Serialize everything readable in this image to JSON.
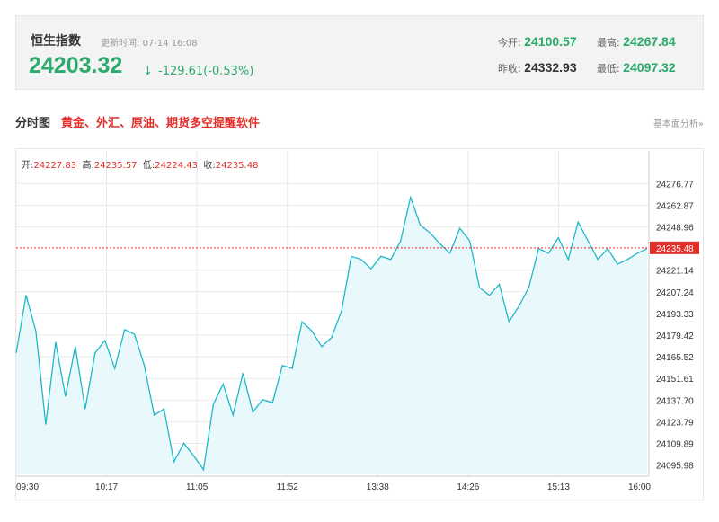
{
  "quote": {
    "name": "恒生指数",
    "update_label": "更新时间:",
    "update_time": "07-14 16:08",
    "price": "24203.32",
    "arrow": "↓",
    "change": "-129.61(-0.53%)",
    "open_label": "今开:",
    "open": "24100.57",
    "high_label": "最高:",
    "high": "24267.84",
    "prev_close_label": "昨收:",
    "prev_close": "24332.93",
    "low_label": "最低:",
    "low": "24097.32"
  },
  "section": {
    "title": "分时图",
    "ad": "黄金、外汇、原油、期货多空提醒软件",
    "fund_link": "基本面分析»"
  },
  "ohlc": {
    "open_label": "开:",
    "open": "24227.83",
    "high_label": "高:",
    "high": "24235.57",
    "low_label": "低:",
    "low": "24224.43",
    "close_label": "收:",
    "close": "24235.48"
  },
  "colors": {
    "up": "#e52d27",
    "down": "#2bab6b",
    "line": "#20b8c8",
    "fill": "#e9f8fb",
    "grid": "#e8e8e8"
  },
  "chart_data": {
    "type": "area",
    "ylim": [
      24090,
      24285
    ],
    "y_ticks": [
      "24276.77",
      "24262.87",
      "24248.96",
      "24235.48",
      "24221.14",
      "24207.24",
      "24193.33",
      "24179.42",
      "24165.52",
      "24151.61",
      "24137.70",
      "24123.79",
      "24109.89",
      "24095.98"
    ],
    "current_value": 24235.48,
    "x_ticks": [
      "09:30",
      "10:17",
      "11:05",
      "11:52",
      "13:38",
      "14:26",
      "15:13",
      "16:00"
    ],
    "series": [
      {
        "x": [
          "09:30",
          "09:35",
          "09:40",
          "09:45",
          "09:50",
          "09:55",
          "10:00",
          "10:05",
          "10:10",
          "10:17",
          "10:22",
          "10:27",
          "10:32",
          "10:37",
          "10:42",
          "10:47",
          "10:52",
          "10:57",
          "11:00",
          "11:05",
          "11:10",
          "11:15",
          "11:20",
          "11:25",
          "11:30",
          "11:35",
          "11:40",
          "11:45",
          "11:52",
          "11:57",
          "12:00",
          "13:05",
          "13:10",
          "13:15",
          "13:20",
          "13:25",
          "13:30",
          "13:38",
          "13:43",
          "13:48",
          "13:53",
          "13:58",
          "14:03",
          "14:08",
          "14:13",
          "14:18",
          "14:26",
          "14:31",
          "14:36",
          "14:41",
          "14:46",
          "14:51",
          "14:56",
          "15:01",
          "15:08",
          "15:13",
          "15:18",
          "15:23",
          "15:28",
          "15:33",
          "15:38",
          "15:43",
          "15:48",
          "15:53",
          "16:00"
        ],
        "values": [
          24168,
          24205,
          24182,
          24122,
          24175,
          24140,
          24172,
          24132,
          24168,
          24176,
          24158,
          24183,
          24180,
          24160,
          24128,
          24132,
          24098,
          24110,
          24102,
          24093,
          24135,
          24148,
          24128,
          24155,
          24130,
          24138,
          24136,
          24160,
          24158,
          24188,
          24182,
          24172,
          24178,
          24195,
          24230,
          24228,
          24222,
          24230,
          24228,
          24240,
          24268,
          24250,
          24245,
          24238,
          24232,
          24248,
          24240,
          24210,
          24205,
          24212,
          24188,
          24198,
          24210,
          24235,
          24232,
          24242,
          24228,
          24252,
          24240,
          24228,
          24235,
          24225,
          24228,
          24232,
          24235
        ]
      }
    ]
  }
}
